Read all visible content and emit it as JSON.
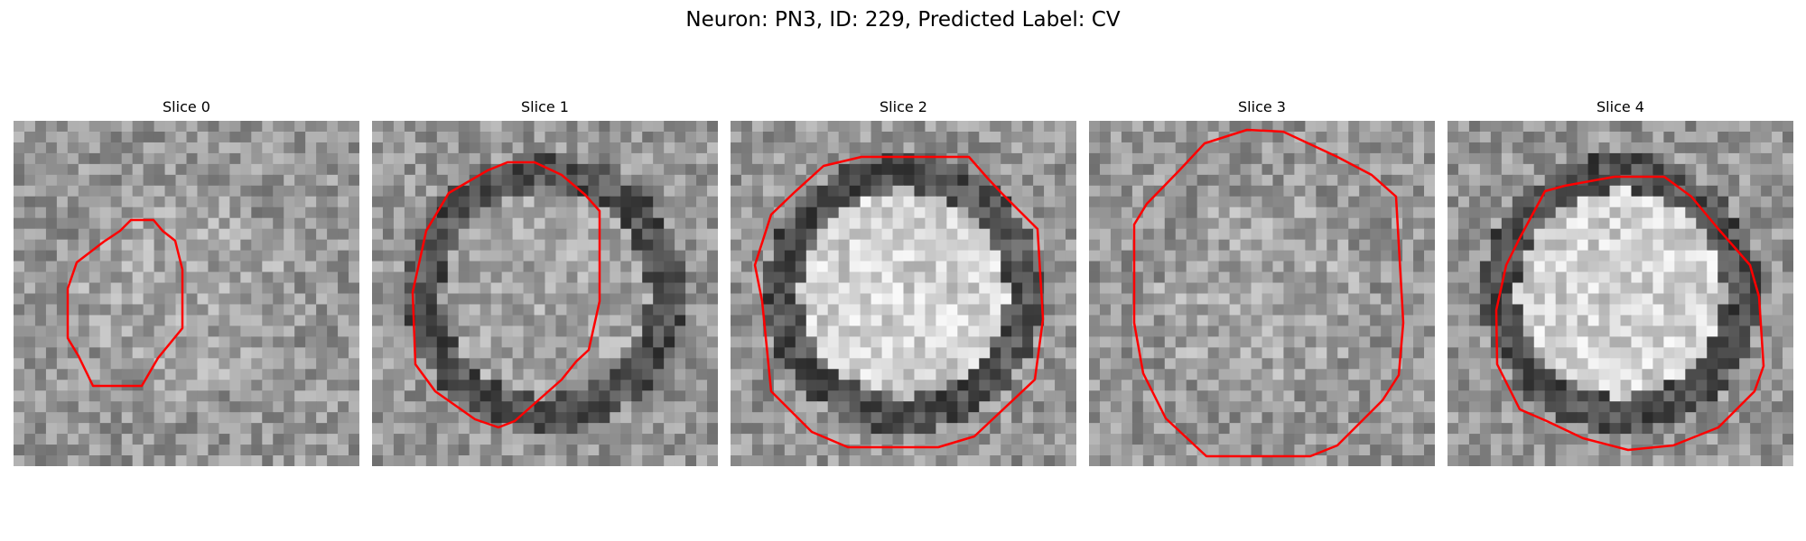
{
  "figure": {
    "title": "Neuron: PN3, ID: 229, Predicted Label: CV",
    "contour_color": "#ff0000",
    "colormap": "gray"
  },
  "slices": [
    {
      "title": "Slice 0",
      "center_brightness": "mid",
      "ring": "none"
    },
    {
      "title": "Slice 1",
      "center_brightness": "mid",
      "ring": "dark"
    },
    {
      "title": "Slice 2",
      "center_brightness": "bright",
      "ring": "dark"
    },
    {
      "title": "Slice 3",
      "center_brightness": "mid",
      "ring": "none"
    },
    {
      "title": "Slice 4",
      "center_brightness": "bright",
      "ring": "dark"
    }
  ]
}
